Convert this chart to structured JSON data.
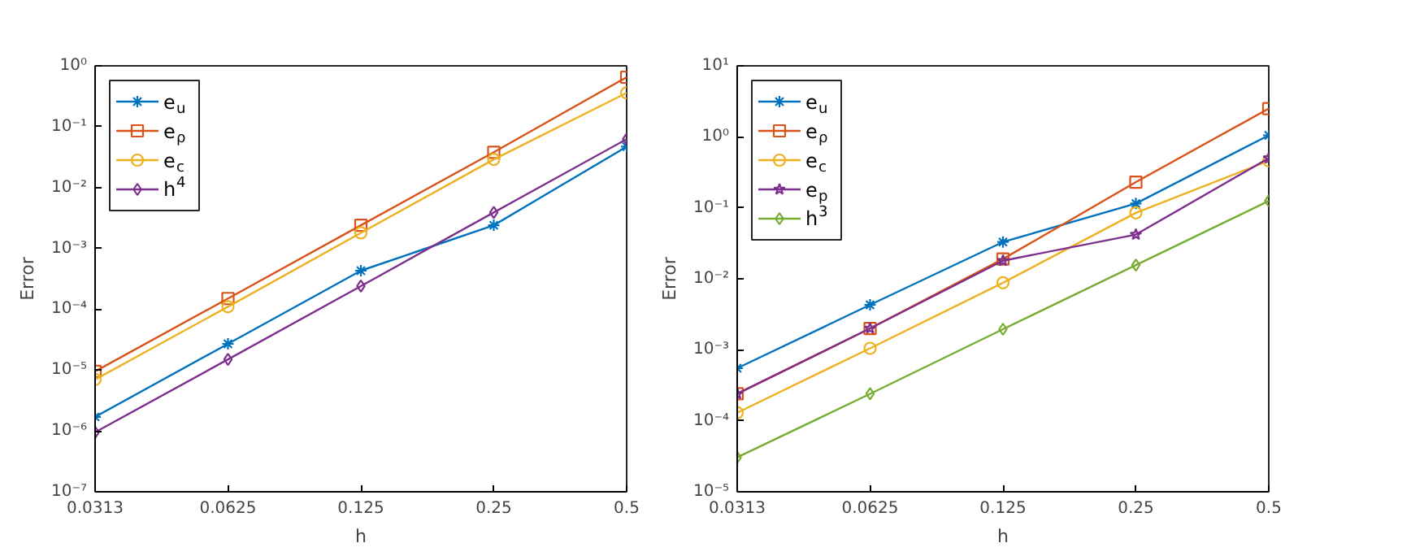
{
  "chart_data": [
    {
      "type": "line",
      "xlabel": "h",
      "ylabel": "Error",
      "log": "xy",
      "legend": "top left",
      "x": [
        0.03125,
        0.0625,
        0.125,
        0.25,
        0.5
      ],
      "xlim": [
        0.03125,
        0.5
      ],
      "xticks": [
        {
          "value": 0.03125,
          "label": "0.0313"
        },
        0.0625,
        0.125,
        0.25,
        0.5
      ],
      "ylim": [
        1e-07,
        1
      ],
      "yticks": [
        {
          "value": 1e-07,
          "label": "10⁻⁷"
        },
        {
          "value": 1e-06,
          "label": "10⁻⁶"
        },
        {
          "value": 1e-05,
          "label": "10⁻⁵"
        },
        {
          "value": 0.0001,
          "label": "10⁻⁴"
        },
        {
          "value": 0.001,
          "label": "10⁻³"
        },
        {
          "value": 0.01,
          "label": "10⁻²"
        },
        {
          "value": 0.1,
          "label": "10⁻¹"
        },
        {
          "value": 1,
          "label": "10⁰"
        }
      ],
      "series": [
        {
          "name": "e$_{u}$",
          "color": "#0072bd",
          "marker": "cross",
          "values": [
            1.7e-06,
            2.7e-05,
            0.00043,
            0.0024,
            0.047
          ]
        },
        {
          "name": "e$_{ρ}$",
          "color": "#d95319",
          "marker": "square",
          "values": [
            9.5e-06,
            0.00015,
            0.0024,
            0.038,
            0.65
          ]
        },
        {
          "name": "e$_{c}$",
          "color": "#edb120",
          "marker": "circle",
          "values": [
            7e-06,
            0.00011,
            0.0018,
            0.029,
            0.36
          ]
        },
        {
          "name": "h$^{4}$",
          "color": "#7e2f8e",
          "marker": "diamond",
          "values": [
            9.5e-07,
            1.5e-05,
            0.00024,
            0.0039,
            0.0625
          ]
        }
      ]
    },
    {
      "type": "line",
      "xlabel": "h",
      "ylabel": "Error",
      "log": "xy",
      "legend": "top left",
      "x": [
        0.03125,
        0.0625,
        0.125,
        0.25,
        0.5
      ],
      "xlim": [
        0.03125,
        0.5
      ],
      "xticks": [
        {
          "value": 0.03125,
          "label": "0.0313"
        },
        0.0625,
        0.125,
        0.25,
        0.5
      ],
      "ylim": [
        1e-05,
        10
      ],
      "yticks": [
        {
          "value": 1e-05,
          "label": "10⁻⁵"
        },
        {
          "value": 0.0001,
          "label": "10⁻⁴"
        },
        {
          "value": 0.001,
          "label": "10⁻³"
        },
        {
          "value": 0.01,
          "label": "10⁻²"
        },
        {
          "value": 0.1,
          "label": "10⁻¹"
        },
        {
          "value": 1,
          "label": "10⁰"
        },
        {
          "value": 10,
          "label": "10¹"
        }
      ],
      "series": [
        {
          "name": "e$_{u}$",
          "color": "#0072bd",
          "marker": "cross",
          "values": [
            0.00055,
            0.0043,
            0.033,
            0.115,
            1.05
          ]
        },
        {
          "name": "e$_{ρ}$",
          "color": "#d95319",
          "marker": "square",
          "values": [
            0.00024,
            0.002,
            0.019,
            0.23,
            2.5
          ]
        },
        {
          "name": "e$_{c}$",
          "color": "#edb120",
          "marker": "circle",
          "values": [
            0.00013,
            0.00105,
            0.0088,
            0.085,
            0.46
          ]
        },
        {
          "name": "e$_{p}$",
          "color": "#7e2f8e",
          "marker": "star",
          "values": [
            0.00024,
            0.002,
            0.018,
            0.042,
            0.5
          ]
        },
        {
          "name": "h$^{3}$",
          "color": "#77ac30",
          "marker": "diamond",
          "values": [
            3.05e-05,
            0.00024,
            0.00195,
            0.0156,
            0.125
          ]
        }
      ]
    }
  ]
}
